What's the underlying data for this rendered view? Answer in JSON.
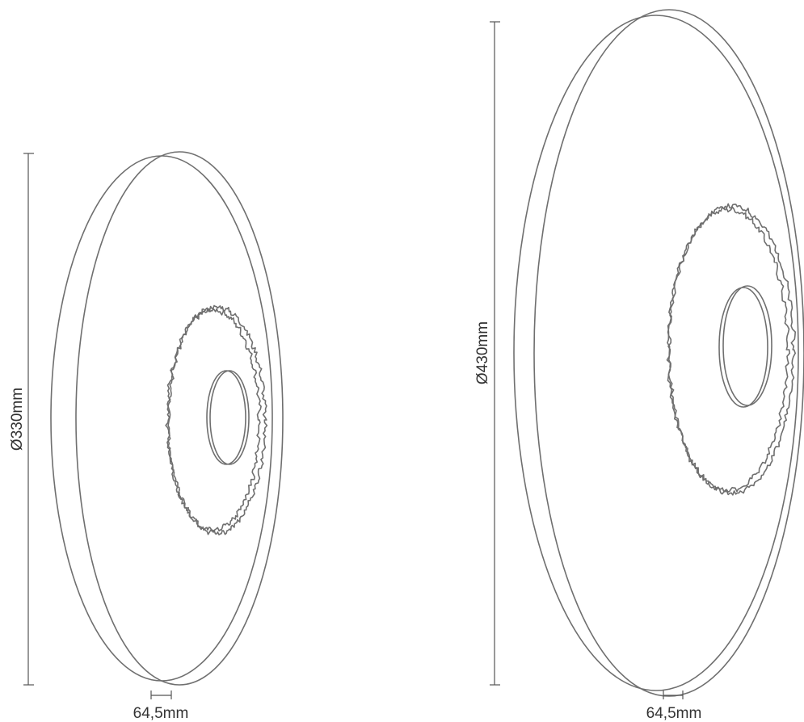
{
  "lamps": [
    {
      "id": "small",
      "diameter_label": "Ø330mm",
      "depth_label": "64,5mm"
    },
    {
      "id": "large",
      "diameter_label": "Ø430mm",
      "depth_label": "64,5mm"
    }
  ],
  "colors": {
    "outline": "#6f6f6f",
    "dimension": "#555555",
    "text": "#333333"
  }
}
